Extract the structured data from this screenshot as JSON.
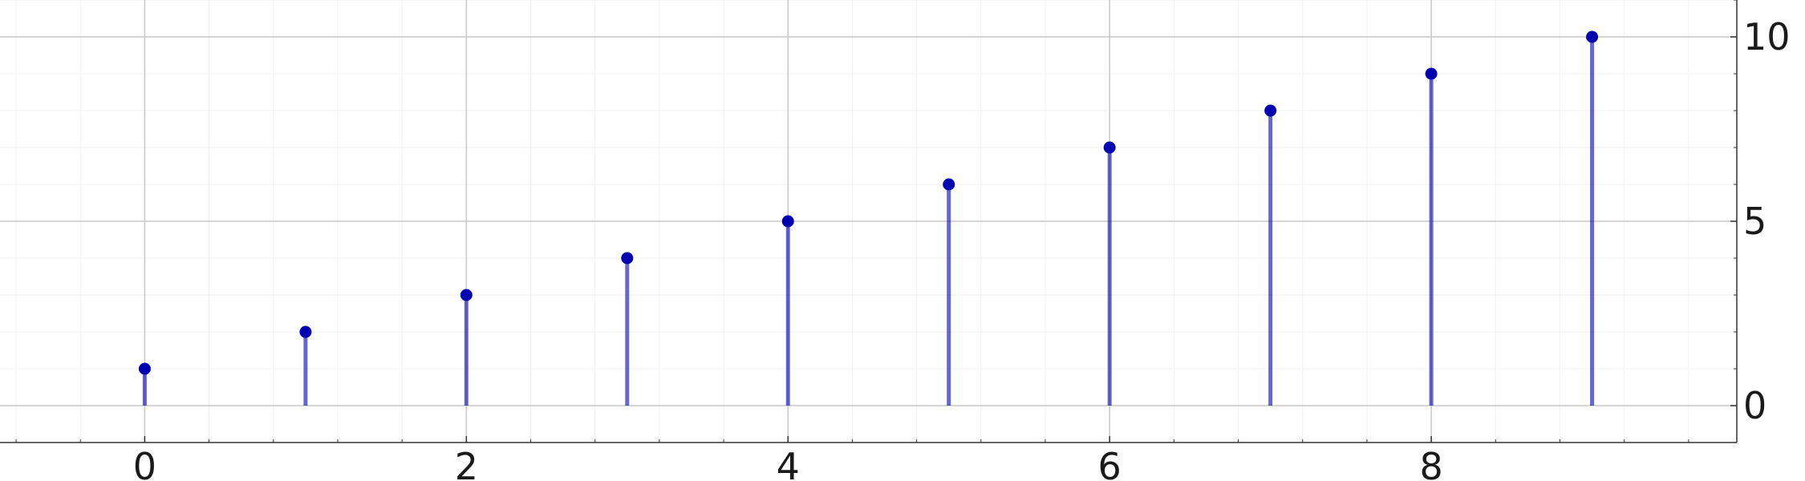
{
  "chart_data": {
    "type": "stem",
    "title": "",
    "xlabel": "",
    "ylabel": "",
    "x": [
      0,
      1,
      2,
      3,
      4,
      5,
      6,
      7,
      8,
      9
    ],
    "series": [
      {
        "values": [
          1,
          2,
          3,
          4,
          5,
          6,
          7,
          8,
          9,
          10
        ],
        "color": "#0000b3"
      }
    ],
    "xlim": [
      -0.9,
      9.9
    ],
    "ylim": [
      -1,
      11
    ],
    "x_ticks": [
      0,
      2,
      4,
      6,
      8
    ],
    "x_tick_labels": [
      "0",
      "2",
      "4",
      "6",
      "8"
    ],
    "y_ticks": [
      0,
      5,
      10
    ],
    "y_tick_labels": [
      "0",
      "5",
      "10"
    ],
    "y_axis_side": "right",
    "grid": true,
    "minor_grid": true,
    "legend": "none"
  }
}
